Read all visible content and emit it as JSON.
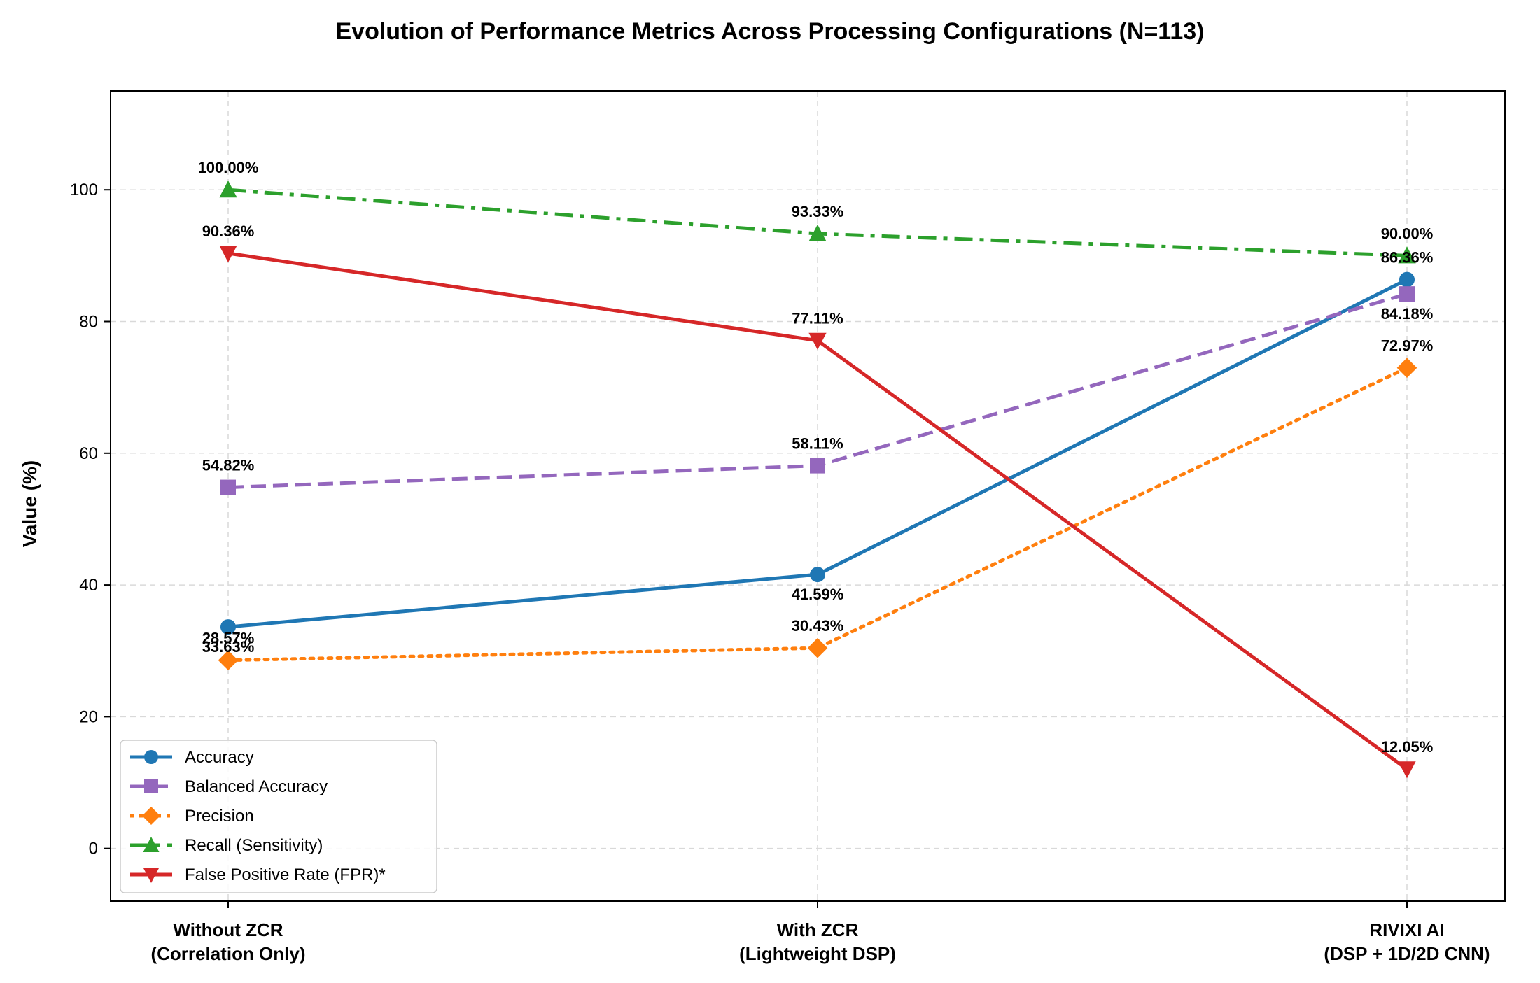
{
  "chart_data": {
    "type": "line",
    "title": "Evolution of Performance Metrics Across Processing Configurations (N=113)",
    "xlabel": "",
    "ylabel": "Value (%)",
    "categories": [
      [
        "Without ZCR",
        "(Correlation Only)"
      ],
      [
        "With ZCR",
        "(Lightweight DSP)"
      ],
      [
        "RIVIXI AI",
        "(DSP + 1D/2D CNN)"
      ]
    ],
    "ylim": [
      -8,
      115
    ],
    "yticks": [
      0,
      20,
      40,
      60,
      80,
      100
    ],
    "grid": true,
    "legend_position": "lower-left",
    "series": [
      {
        "name": "Accuracy",
        "values": [
          33.63,
          41.59,
          86.36
        ],
        "labels": [
          "33.63%",
          "41.59%",
          "86.36%"
        ],
        "label_pos": [
          "below",
          "below",
          "above"
        ],
        "color": "#1f77b4",
        "marker": "circle",
        "dash": "solid"
      },
      {
        "name": "Balanced Accuracy",
        "values": [
          54.82,
          58.11,
          84.18
        ],
        "labels": [
          "54.82%",
          "58.11%",
          "84.18%"
        ],
        "label_pos": [
          "above",
          "above",
          "below"
        ],
        "color": "#9467bd",
        "marker": "square",
        "dash": "dashed"
      },
      {
        "name": "Precision",
        "values": [
          28.57,
          30.43,
          72.97
        ],
        "labels": [
          "28.57%",
          "30.43%",
          "72.97%"
        ],
        "label_pos": [
          "above",
          "above",
          "above"
        ],
        "color": "#ff7f0e",
        "marker": "diamond",
        "dash": "dotted"
      },
      {
        "name": "Recall (Sensitivity)",
        "values": [
          100.0,
          93.33,
          90.0
        ],
        "labels": [
          "100.00%",
          "93.33%",
          "90.00%"
        ],
        "label_pos": [
          "above",
          "above",
          "above"
        ],
        "color": "#2ca02c",
        "marker": "triangle-up",
        "dash": "dashdot"
      },
      {
        "name": "False Positive Rate (FPR)*",
        "values": [
          90.36,
          77.11,
          12.05
        ],
        "labels": [
          "90.36%",
          "77.11%",
          "12.05%"
        ],
        "label_pos": [
          "above",
          "above",
          "above"
        ],
        "color": "#d62728",
        "marker": "triangle-down",
        "dash": "solid"
      }
    ]
  }
}
